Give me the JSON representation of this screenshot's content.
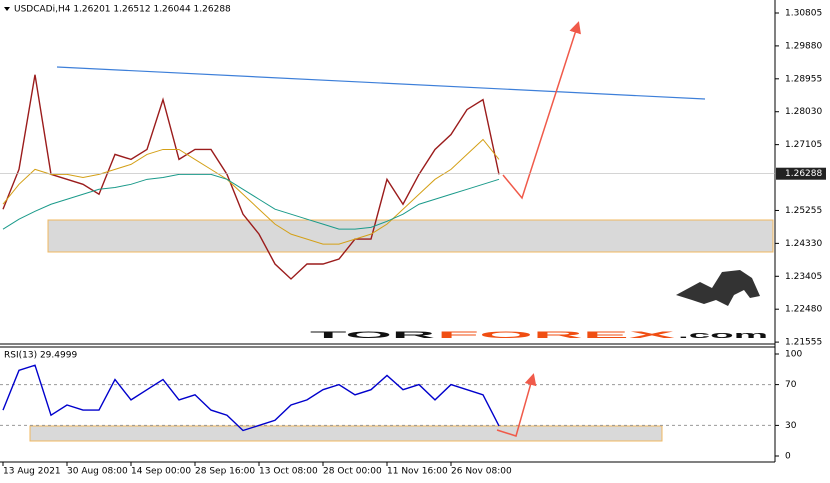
{
  "chart_data": [
    {
      "type": "line",
      "title": "USDCADi,H4 1.26201 1.26512 1.26044 1.26288",
      "categories": [
        "13 Aug 2021",
        null,
        null,
        null,
        "30 Aug 08:00",
        null,
        null,
        null,
        "14 Sep 00:00",
        null,
        null,
        null,
        "28 Sep 16:00",
        null,
        null,
        null,
        "13 Oct 08:00",
        null,
        null,
        null,
        "28 Oct 00:00",
        null,
        null,
        null,
        "11 Nov 16:00",
        null,
        null,
        null,
        "26 Nov 08:00",
        null,
        null,
        null
      ],
      "series": [
        {
          "color": "#9b1c1c",
          "values": [
            1.2529,
            1.2641,
            1.2907,
            1.2627,
            1.2613,
            1.2599,
            1.2571,
            1.2683,
            1.2669,
            1.2697,
            1.2837,
            1.2669,
            1.2697,
            1.2697,
            1.2627,
            1.2515,
            1.2459,
            1.2375,
            1.2333,
            1.2375,
            1.2375,
            1.2389,
            1.2445,
            1.2445,
            1.2613,
            1.2543,
            1.2627,
            1.2697,
            1.2739,
            1.2809,
            1.2837,
            1.2627
          ]
        },
        {
          "color": "#d4a017",
          "values": [
            1.2543,
            1.2599,
            1.2641,
            1.2627,
            1.2627,
            1.2618,
            1.2627,
            1.2641,
            1.2655,
            1.2683,
            1.2697,
            1.2697,
            1.2669,
            1.2641,
            1.2613,
            1.2571,
            1.2529,
            1.2487,
            1.2459,
            1.2445,
            1.2431,
            1.2431,
            1.2445,
            1.2459,
            1.2487,
            1.2529,
            1.2571,
            1.2613,
            1.2641,
            1.2683,
            1.2725,
            1.2669
          ]
        },
        {
          "color": "#1a9a8a",
          "values": [
            1.2473,
            1.2501,
            1.2523,
            1.2543,
            1.2557,
            1.2571,
            1.2585,
            1.259,
            1.2599,
            1.2613,
            1.2618,
            1.2627,
            1.2627,
            1.2627,
            1.2613,
            1.2585,
            1.2557,
            1.2529,
            1.2515,
            1.2501,
            1.2487,
            1.2473,
            1.2473,
            1.2478,
            1.2495,
            1.2515,
            1.2543,
            1.2557,
            1.2571,
            1.2585,
            1.2599,
            1.2613
          ]
        }
      ],
      "last_price": 1.26288,
      "ylim": [
        1.2153,
        1.3117
      ],
      "yticks": [
        1.30805,
        {
          "value": 1.2988,
          "label": "1.29880"
        },
        1.28955,
        {
          "value": 1.2803,
          "label": "1.28030"
        },
        1.27105,
        1.25255,
        {
          "value": 1.2433,
          "label": "1.24330"
        },
        1.23405,
        {
          "value": 1.2248,
          "label": "1.22480"
        },
        1.21555
      ],
      "grid": false
    },
    {
      "type": "line",
      "title": "RSI(13) 29.4999",
      "series": [
        {
          "color": "#0000cc",
          "values": [
            45,
            84,
            89,
            40,
            50,
            45,
            45,
            75,
            55,
            65,
            75,
            55,
            60,
            45,
            40,
            25,
            30,
            35,
            50,
            55,
            65,
            70,
            60,
            65,
            79,
            65,
            70,
            55,
            70,
            65,
            60,
            29.5
          ]
        }
      ],
      "ylim": [
        0,
        100
      ],
      "yticks": [
        100,
        70,
        30,
        0
      ],
      "grid": true
    }
  ],
  "watermark": {
    "part1": "TOR",
    "part2": "FOREX",
    "part3": ".com"
  }
}
